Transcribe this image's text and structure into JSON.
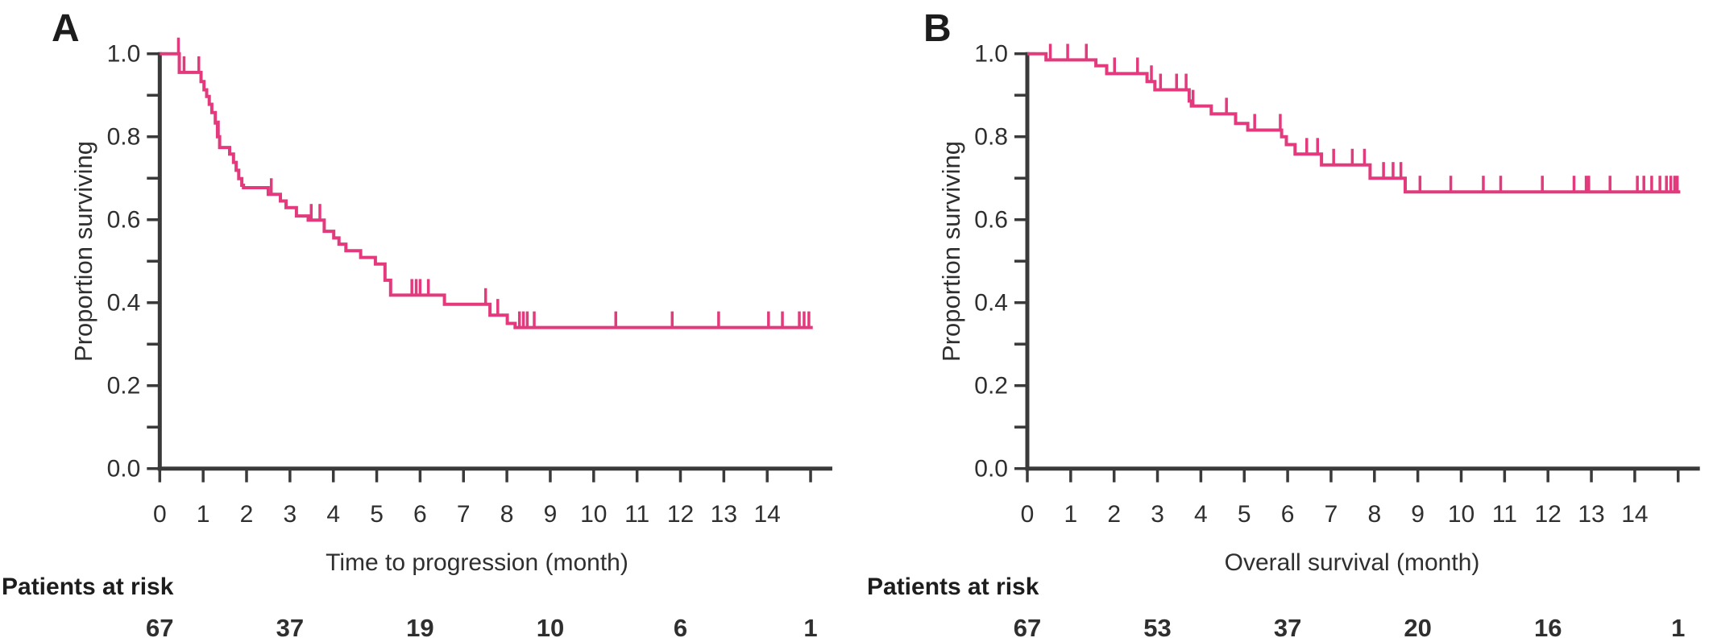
{
  "colors": {
    "curve": "#e23a7c",
    "axis": "#3a3a3a",
    "text": "#2f2f2f"
  },
  "chart_data": [
    {
      "type": "line",
      "subtype": "kaplan-meier-step",
      "panel_label": "A",
      "xlabel": "Time to progression (month)",
      "ylabel": "Proportion surviving",
      "xlim": [
        0,
        15.5
      ],
      "ylim": [
        0.0,
        1.0
      ],
      "grid": false,
      "legend": "none",
      "x_ticks": [
        0,
        1,
        2,
        3,
        4,
        5,
        6,
        7,
        8,
        9,
        10,
        11,
        12,
        13,
        14,
        15
      ],
      "x_tick_labels": [
        "0",
        "1",
        "2",
        "3",
        "4",
        "5",
        "6",
        "7",
        "8",
        "9",
        "10",
        "11",
        "12",
        "13",
        "14",
        ""
      ],
      "y_ticks": [
        0.0,
        0.1,
        0.2,
        0.3,
        0.4,
        0.5,
        0.6,
        0.7,
        0.8,
        0.9,
        1.0
      ],
      "y_tick_labels": [
        "0.0",
        "",
        "0.2",
        "",
        "0.4",
        "",
        "0.6",
        "",
        "0.8",
        "",
        "1.0"
      ],
      "series": [
        {
          "name": "Time to progression",
          "color": "#e23a7c",
          "steps": [
            [
              0,
              1.0
            ],
            [
              0.45,
              0.955
            ],
            [
              0.95,
              0.933
            ],
            [
              1.02,
              0.913
            ],
            [
              1.08,
              0.897
            ],
            [
              1.14,
              0.878
            ],
            [
              1.2,
              0.858
            ],
            [
              1.28,
              0.833
            ],
            [
              1.33,
              0.8
            ],
            [
              1.38,
              0.774
            ],
            [
              1.61,
              0.758
            ],
            [
              1.7,
              0.738
            ],
            [
              1.76,
              0.719
            ],
            [
              1.82,
              0.699
            ],
            [
              1.89,
              0.683
            ],
            [
              1.93,
              0.677
            ],
            [
              2.5,
              0.661
            ],
            [
              2.78,
              0.645
            ],
            [
              2.91,
              0.629
            ],
            [
              3.15,
              0.609
            ],
            [
              3.42,
              0.599
            ],
            [
              3.79,
              0.572
            ],
            [
              4.01,
              0.556
            ],
            [
              4.13,
              0.541
            ],
            [
              4.29,
              0.525
            ],
            [
              4.63,
              0.509
            ],
            [
              4.97,
              0.493
            ],
            [
              5.19,
              0.454
            ],
            [
              5.32,
              0.418
            ],
            [
              6.56,
              0.396
            ],
            [
              7.61,
              0.37
            ],
            [
              8.01,
              0.35
            ],
            [
              8.19,
              0.34
            ]
          ],
          "end_time": 15.05,
          "censor_times": [
            0.43,
            0.56,
            0.9,
            1.35,
            2.57,
            3.49,
            3.69,
            5.81,
            5.91,
            6.0,
            6.19,
            7.51,
            7.79,
            8.29,
            8.38,
            8.47,
            8.63,
            10.51,
            11.81,
            12.88,
            14.03,
            14.35,
            14.74,
            14.85,
            14.96
          ]
        }
      ],
      "risk_table": {
        "label": "Patients at risk",
        "times": [
          0,
          3,
          6,
          9,
          12,
          15
        ],
        "counts": [
          "67",
          "37",
          "19",
          "10",
          "6",
          "1"
        ]
      }
    },
    {
      "type": "line",
      "subtype": "kaplan-meier-step",
      "panel_label": "B",
      "xlabel": "Overall survival (month)",
      "ylabel": "Proportion surviving",
      "xlim": [
        0,
        15.5
      ],
      "ylim": [
        0.0,
        1.0
      ],
      "grid": false,
      "legend": "none",
      "x_ticks": [
        0,
        1,
        2,
        3,
        4,
        5,
        6,
        7,
        8,
        9,
        10,
        11,
        12,
        13,
        14,
        15
      ],
      "x_tick_labels": [
        "0",
        "1",
        "2",
        "3",
        "4",
        "5",
        "6",
        "7",
        "8",
        "9",
        "10",
        "11",
        "12",
        "13",
        "14",
        ""
      ],
      "y_ticks": [
        0.0,
        0.1,
        0.2,
        0.3,
        0.4,
        0.5,
        0.6,
        0.7,
        0.8,
        0.9,
        1.0
      ],
      "y_tick_labels": [
        "0.0",
        "",
        "0.2",
        "",
        "0.4",
        "",
        "0.6",
        "",
        "0.8",
        "",
        "1.0"
      ],
      "series": [
        {
          "name": "Overall survival",
          "color": "#e23a7c",
          "steps": [
            [
              0,
              1.0
            ],
            [
              0.43,
              0.985
            ],
            [
              1.58,
              0.971
            ],
            [
              1.83,
              0.952
            ],
            [
              2.76,
              0.933
            ],
            [
              2.94,
              0.913
            ],
            [
              3.73,
              0.886
            ],
            [
              3.78,
              0.874
            ],
            [
              4.24,
              0.855
            ],
            [
              4.8,
              0.832
            ],
            [
              5.08,
              0.816
            ],
            [
              5.86,
              0.8
            ],
            [
              5.97,
              0.781
            ],
            [
              6.17,
              0.758
            ],
            [
              6.78,
              0.732
            ],
            [
              7.9,
              0.7
            ],
            [
              8.71,
              0.667
            ]
          ],
          "end_time": 15.05,
          "censor_times": [
            0.53,
            0.93,
            1.36,
            2.01,
            2.54,
            2.86,
            3.07,
            3.44,
            3.66,
            3.82,
            4.59,
            5.24,
            5.83,
            6.44,
            6.69,
            7.06,
            7.49,
            7.77,
            8.21,
            8.43,
            8.61,
            9.05,
            9.76,
            10.51,
            10.91,
            11.87,
            12.6,
            12.88,
            12.94,
            13.43,
            14.06,
            14.21,
            14.39,
            14.58,
            14.73,
            14.83,
            14.92,
            14.98
          ]
        }
      ],
      "risk_table": {
        "label": "Patients at risk",
        "times": [
          0,
          3,
          6,
          9,
          12,
          15
        ],
        "counts": [
          "67",
          "53",
          "37",
          "20",
          "16",
          "1"
        ]
      }
    }
  ]
}
